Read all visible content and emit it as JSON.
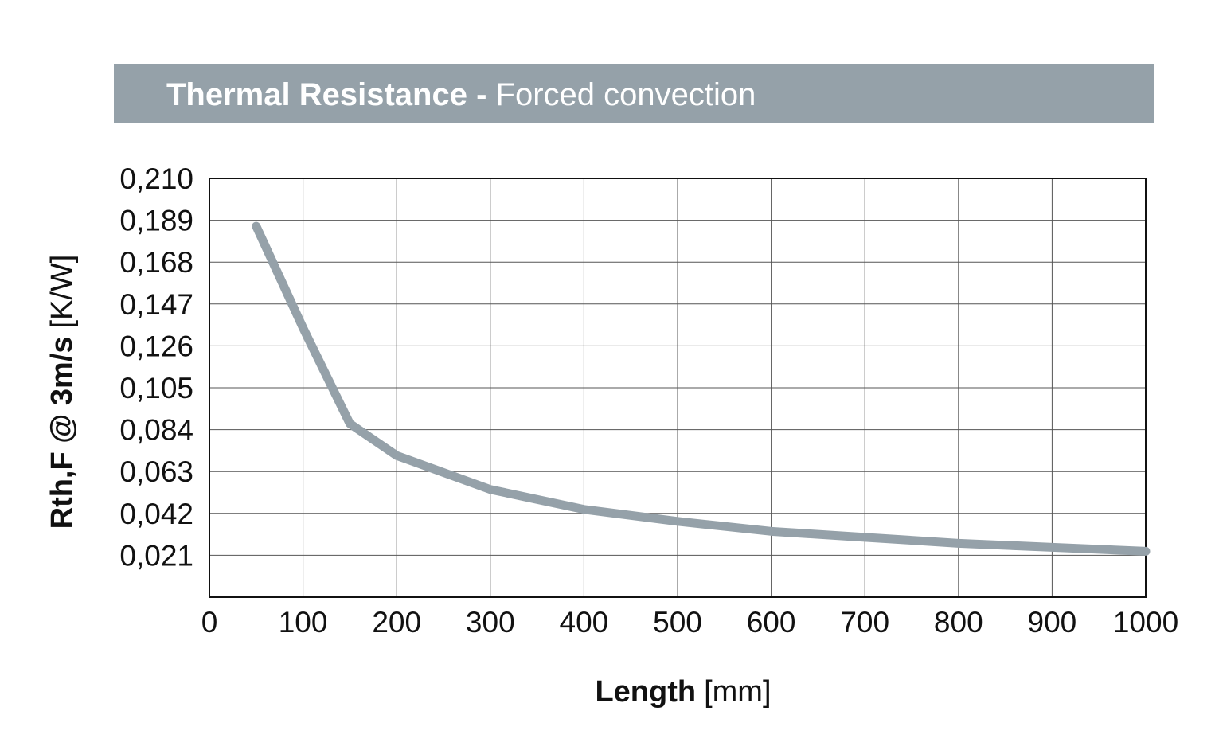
{
  "header": {
    "title_main": "Thermal Resistance",
    "title_separator": "-",
    "title_sub": "Forced convection",
    "band_color": "#95a1a9"
  },
  "chart_data": {
    "type": "line",
    "xlabel_bold": "Length",
    "xlabel_unit": "[mm]",
    "ylabel_bold": "Rth,F @ 3m/s",
    "ylabel_unit": "[K/W]",
    "xlim": [
      0,
      1000
    ],
    "ylim": [
      0,
      0.21
    ],
    "x_ticks": [
      "0",
      "100",
      "200",
      "300",
      "400",
      "500",
      "600",
      "700",
      "800",
      "900",
      "1000"
    ],
    "x_tick_values": [
      0,
      100,
      200,
      300,
      400,
      500,
      600,
      700,
      800,
      900,
      1000
    ],
    "y_ticks": [
      "0,210",
      "0,189",
      "0,168",
      "0,147",
      "0,126",
      "0,105",
      "0,084",
      "0,063",
      "0,042",
      "0,021"
    ],
    "y_tick_values": [
      0.21,
      0.189,
      0.168,
      0.147,
      0.126,
      0.105,
      0.084,
      0.063,
      0.042,
      0.021
    ],
    "grid": true,
    "series": [
      {
        "x": [
          50,
          100,
          150,
          200,
          300,
          400,
          500,
          600,
          700,
          800,
          900,
          1000
        ],
        "y": [
          0.186,
          0.135,
          0.087,
          0.071,
          0.054,
          0.044,
          0.038,
          0.033,
          0.03,
          0.027,
          0.025,
          0.023
        ],
        "color": "#95a1a9"
      }
    ]
  }
}
